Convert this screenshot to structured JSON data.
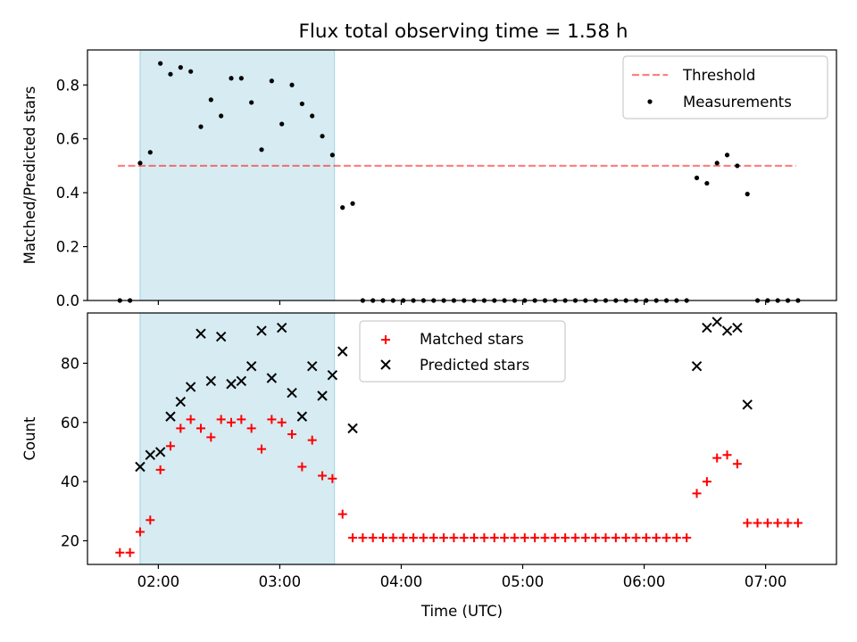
{
  "title": "Flux total observing time = 1.58 h",
  "colors": {
    "shade": "#add8e6",
    "threshold": "#ff0000",
    "measurements": "#000000",
    "matched": "#ff0000",
    "predicted": "#000000"
  },
  "chart_data": [
    {
      "type": "scatter",
      "title": "Flux total observing time = 1.58 h",
      "xlabel": "",
      "ylabel": "Matched/Predicted stars",
      "xlim": [
        "01:25",
        "07:35"
      ],
      "ylim": [
        0,
        0.93
      ],
      "yticks": [
        0.0,
        0.2,
        0.4,
        0.6,
        0.8
      ],
      "ytick_labels": [
        "0.0",
        "0.2",
        "0.4",
        "0.6",
        "0.8"
      ],
      "xticks": [
        "02:00",
        "03:00",
        "04:00",
        "05:00",
        "06:00",
        "07:00"
      ],
      "show_xtick_labels": false,
      "grid": false,
      "legend_position": "top-right",
      "shaded_span": [
        "01:51",
        "03:27"
      ],
      "threshold": {
        "name": "Threshold",
        "value": 0.5,
        "from": "01:40",
        "to": "07:15",
        "style": "dashed"
      },
      "series": [
        {
          "name": "Measurements",
          "marker": "dot",
          "points": [
            [
              "01:41",
              0.0
            ],
            [
              "01:46",
              0.0
            ],
            [
              "01:51",
              0.51
            ],
            [
              "01:56",
              0.55
            ],
            [
              "02:01",
              0.88
            ],
            [
              "02:06",
              0.84
            ],
            [
              "02:11",
              0.865
            ],
            [
              "02:16",
              0.85
            ],
            [
              "02:21",
              0.645
            ],
            [
              "02:26",
              0.745
            ],
            [
              "02:31",
              0.685
            ],
            [
              "02:36",
              0.825
            ],
            [
              "02:41",
              0.825
            ],
            [
              "02:46",
              0.735
            ],
            [
              "02:51",
              0.56
            ],
            [
              "02:56",
              0.815
            ],
            [
              "03:01",
              0.655
            ],
            [
              "03:06",
              0.8
            ],
            [
              "03:11",
              0.73
            ],
            [
              "03:16",
              0.685
            ],
            [
              "03:21",
              0.61
            ],
            [
              "03:26",
              0.54
            ],
            [
              "03:31",
              0.345
            ],
            [
              "03:36",
              0.36
            ],
            [
              "03:41",
              0.0
            ],
            [
              "03:46",
              0.0
            ],
            [
              "03:51",
              0.0
            ],
            [
              "03:56",
              0.0
            ],
            [
              "04:01",
              0.0
            ],
            [
              "04:06",
              0.0
            ],
            [
              "04:11",
              0.0
            ],
            [
              "04:16",
              0.0
            ],
            [
              "04:21",
              0.0
            ],
            [
              "04:26",
              0.0
            ],
            [
              "04:31",
              0.0
            ],
            [
              "04:36",
              0.0
            ],
            [
              "04:41",
              0.0
            ],
            [
              "04:46",
              0.0
            ],
            [
              "04:51",
              0.0
            ],
            [
              "04:56",
              0.0
            ],
            [
              "05:01",
              0.0
            ],
            [
              "05:06",
              0.0
            ],
            [
              "05:11",
              0.0
            ],
            [
              "05:16",
              0.0
            ],
            [
              "05:21",
              0.0
            ],
            [
              "05:26",
              0.0
            ],
            [
              "05:31",
              0.0
            ],
            [
              "05:36",
              0.0
            ],
            [
              "05:41",
              0.0
            ],
            [
              "05:46",
              0.0
            ],
            [
              "05:51",
              0.0
            ],
            [
              "05:56",
              0.0
            ],
            [
              "06:01",
              0.0
            ],
            [
              "06:06",
              0.0
            ],
            [
              "06:11",
              0.0
            ],
            [
              "06:16",
              0.0
            ],
            [
              "06:21",
              0.0
            ],
            [
              "06:26",
              0.455
            ],
            [
              "06:31",
              0.435
            ],
            [
              "06:36",
              0.51
            ],
            [
              "06:41",
              0.54
            ],
            [
              "06:46",
              0.5
            ],
            [
              "06:51",
              0.395
            ],
            [
              "06:56",
              0.0
            ],
            [
              "07:01",
              0.0
            ],
            [
              "07:06",
              0.0
            ],
            [
              "07:11",
              0.0
            ],
            [
              "07:16",
              0.0
            ]
          ]
        }
      ]
    },
    {
      "type": "scatter",
      "title": "",
      "xlabel": "Time (UTC)",
      "ylabel": "Count",
      "xlim": [
        "01:25",
        "07:35"
      ],
      "ylim": [
        12,
        97
      ],
      "yticks": [
        20,
        40,
        60,
        80
      ],
      "ytick_labels": [
        "20",
        "40",
        "60",
        "80"
      ],
      "xticks": [
        "02:00",
        "03:00",
        "04:00",
        "05:00",
        "06:00",
        "07:00"
      ],
      "xtick_labels": [
        "02:00",
        "03:00",
        "04:00",
        "05:00",
        "06:00",
        "07:00"
      ],
      "grid": false,
      "legend_position": "top-center",
      "shaded_span": [
        "01:51",
        "03:27"
      ],
      "series": [
        {
          "name": "Matched stars",
          "marker": "plus",
          "points": [
            [
              "01:41",
              16
            ],
            [
              "01:46",
              16
            ],
            [
              "01:51",
              23
            ],
            [
              "01:56",
              27
            ],
            [
              "02:01",
              44
            ],
            [
              "02:06",
              52
            ],
            [
              "02:11",
              58
            ],
            [
              "02:16",
              61
            ],
            [
              "02:21",
              58
            ],
            [
              "02:26",
              55
            ],
            [
              "02:31",
              61
            ],
            [
              "02:36",
              60
            ],
            [
              "02:41",
              61
            ],
            [
              "02:46",
              58
            ],
            [
              "02:51",
              51
            ],
            [
              "02:56",
              61
            ],
            [
              "03:01",
              60
            ],
            [
              "03:06",
              56
            ],
            [
              "03:11",
              45
            ],
            [
              "03:16",
              54
            ],
            [
              "03:21",
              42
            ],
            [
              "03:26",
              41
            ],
            [
              "03:31",
              29
            ],
            [
              "03:36",
              21
            ],
            [
              "03:41",
              21
            ],
            [
              "03:46",
              21
            ],
            [
              "03:51",
              21
            ],
            [
              "03:56",
              21
            ],
            [
              "04:01",
              21
            ],
            [
              "04:06",
              21
            ],
            [
              "04:11",
              21
            ],
            [
              "04:16",
              21
            ],
            [
              "04:21",
              21
            ],
            [
              "04:26",
              21
            ],
            [
              "04:31",
              21
            ],
            [
              "04:36",
              21
            ],
            [
              "04:41",
              21
            ],
            [
              "04:46",
              21
            ],
            [
              "04:51",
              21
            ],
            [
              "04:56",
              21
            ],
            [
              "05:01",
              21
            ],
            [
              "05:06",
              21
            ],
            [
              "05:11",
              21
            ],
            [
              "05:16",
              21
            ],
            [
              "05:21",
              21
            ],
            [
              "05:26",
              21
            ],
            [
              "05:31",
              21
            ],
            [
              "05:36",
              21
            ],
            [
              "05:41",
              21
            ],
            [
              "05:46",
              21
            ],
            [
              "05:51",
              21
            ],
            [
              "05:56",
              21
            ],
            [
              "06:01",
              21
            ],
            [
              "06:06",
              21
            ],
            [
              "06:11",
              21
            ],
            [
              "06:16",
              21
            ],
            [
              "06:21",
              21
            ],
            [
              "06:26",
              36
            ],
            [
              "06:31",
              40
            ],
            [
              "06:36",
              48
            ],
            [
              "06:41",
              49
            ],
            [
              "06:46",
              46
            ],
            [
              "06:51",
              26
            ],
            [
              "06:56",
              26
            ],
            [
              "07:01",
              26
            ],
            [
              "07:06",
              26
            ],
            [
              "07:11",
              26
            ],
            [
              "07:16",
              26
            ]
          ]
        },
        {
          "name": "Predicted stars",
          "marker": "x",
          "points": [
            [
              "01:51",
              45
            ],
            [
              "01:56",
              49
            ],
            [
              "02:01",
              50
            ],
            [
              "02:06",
              62
            ],
            [
              "02:11",
              67
            ],
            [
              "02:16",
              72
            ],
            [
              "02:21",
              90
            ],
            [
              "02:26",
              74
            ],
            [
              "02:31",
              89
            ],
            [
              "02:36",
              73
            ],
            [
              "02:41",
              74
            ],
            [
              "02:46",
              79
            ],
            [
              "02:51",
              91
            ],
            [
              "02:56",
              75
            ],
            [
              "03:01",
              92
            ],
            [
              "03:06",
              70
            ],
            [
              "03:11",
              62
            ],
            [
              "03:16",
              79
            ],
            [
              "03:21",
              69
            ],
            [
              "03:26",
              76
            ],
            [
              "03:31",
              84
            ],
            [
              "03:36",
              58
            ],
            [
              "06:26",
              79
            ],
            [
              "06:31",
              92
            ],
            [
              "06:36",
              94
            ],
            [
              "06:41",
              91
            ],
            [
              "06:46",
              92
            ],
            [
              "06:51",
              66
            ]
          ]
        }
      ]
    }
  ]
}
